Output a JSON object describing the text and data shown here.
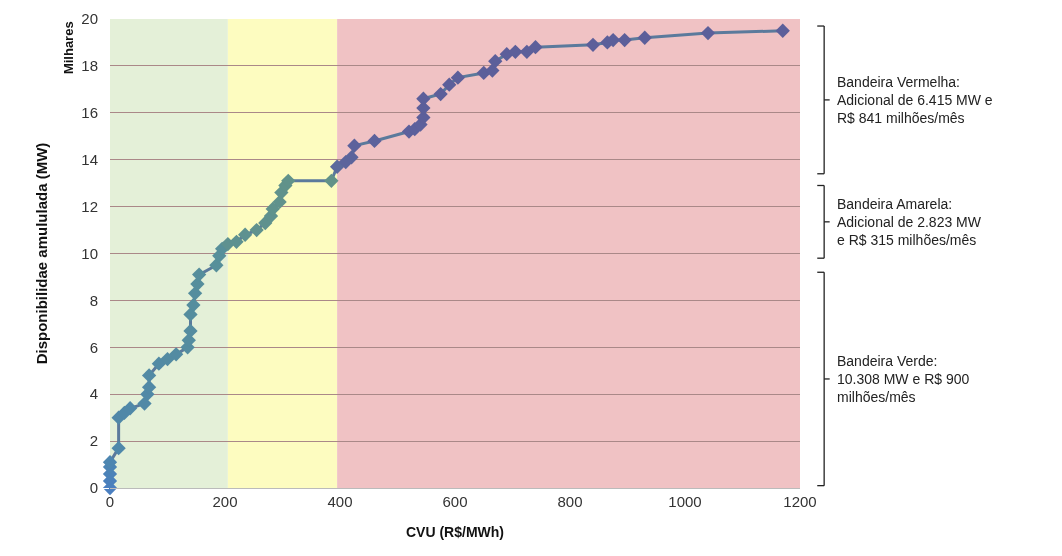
{
  "chart_data": {
    "type": "line",
    "xlabel": "CVU (R$/MWh)",
    "ylabel": "Disponibilidae amululada (MW)",
    "annotations": [
      "Milhares",
      "Bandeira Vermelha:\nAdicional de 6.415 MW e\nR$ 841 milhões/mês",
      "Bandeira Amarela:\nAdicional de 2.823 MW\ne R$ 315 milhões/mês",
      "Bandeira Verde:\n10.308 MW e R$ 900\nmilhões/mês"
    ],
    "xlim": [
      0,
      1200
    ],
    "xticks": [
      0,
      200,
      400,
      600,
      800,
      1000,
      1200
    ],
    "ylim": [
      0,
      20
    ],
    "yticks": [
      0,
      2,
      4,
      6,
      8,
      10,
      12,
      14,
      16,
      18,
      20
    ],
    "grid": "y",
    "marker": "diamond",
    "line_style": "solid",
    "bands": [
      {
        "axis": "x",
        "from": 0,
        "to": 205,
        "color": "#e4f0d8"
      },
      {
        "axis": "x",
        "from": 205,
        "to": 395,
        "color": "#fdfcc0"
      },
      {
        "axis": "x",
        "from": 395,
        "to": 1200,
        "color": "#f0c2c4"
      }
    ],
    "series": [
      {
        "color": "#5b7a9c",
        "x": [
          0,
          0,
          0,
          0,
          0,
          15,
          15,
          25,
          35,
          60,
          65,
          68,
          68,
          85,
          100,
          115,
          135,
          137,
          140,
          140,
          145,
          148,
          152,
          155,
          185,
          190,
          195,
          205,
          220,
          235,
          255,
          270,
          280,
          283,
          295,
          298,
          305,
          310,
          385,
          395,
          410,
          420,
          425,
          460,
          520,
          530,
          540,
          545,
          545,
          545,
          575,
          590,
          605,
          650,
          665,
          670,
          690,
          705,
          725,
          740,
          840,
          865,
          875,
          895,
          930,
          1040,
          1170
        ],
        "values": [
          0,
          0.3,
          0.6,
          0.9,
          1.1,
          1.7,
          3.0,
          3.2,
          3.4,
          3.6,
          4.0,
          4.3,
          4.8,
          5.3,
          5.5,
          5.7,
          6.0,
          6.3,
          6.7,
          7.4,
          7.8,
          8.3,
          8.7,
          9.1,
          9.5,
          9.9,
          10.2,
          10.4,
          10.5,
          10.8,
          11.0,
          11.3,
          11.6,
          11.9,
          12.2,
          12.6,
          12.9,
          13.1,
          13.1,
          13.7,
          13.9,
          14.1,
          14.6,
          14.8,
          15.2,
          15.3,
          15.5,
          15.8,
          16.2,
          16.6,
          16.8,
          17.2,
          17.5,
          17.7,
          17.8,
          18.2,
          18.5,
          18.6,
          18.6,
          18.8,
          18.9,
          19.0,
          19.1,
          19.1,
          19.2,
          19.4,
          19.5
        ],
        "colors": [
          "#4a7fc0",
          "#4a80bc",
          "#4b82b8",
          "#4c84b4",
          "#4d86b0",
          "#4f88aa",
          "#5088a8",
          "#5088a8",
          "#5088a8",
          "#5189a6",
          "#5189a6",
          "#5189a6",
          "#528aa4",
          "#528aa4",
          "#538ba2",
          "#538ba2",
          "#548ca0",
          "#548ca0",
          "#548ca0",
          "#558d9e",
          "#558d9e",
          "#558d9e",
          "#568e9c",
          "#568e9c",
          "#578f9a",
          "#578f9a",
          "#578f9a",
          "#5e9190",
          "#5e9190",
          "#5e9190",
          "#5f918e",
          "#5f918e",
          "#5f918e",
          "#60928c",
          "#60928c",
          "#60928c",
          "#61928a",
          "#61928a",
          "#629288",
          "#5c6a9c",
          "#5c649c",
          "#5c649c",
          "#5c629c",
          "#5c629c",
          "#5c609c",
          "#5c609c",
          "#5c609c",
          "#5c5f9a",
          "#5c5f9a",
          "#5c5f9a",
          "#5c5f9a",
          "#5c5f9a",
          "#5c5f9a",
          "#5c5f9a",
          "#5c5f9a",
          "#5c5f9a",
          "#5c5f9a",
          "#5c5f9a",
          "#5c5f9a",
          "#5c5f9a",
          "#5c5f9a",
          "#5c5f9a",
          "#5c5f9a",
          "#5c5f9a",
          "#5c5f9a",
          "#5c5f9a",
          "#5c5f9a"
        ]
      }
    ]
  }
}
